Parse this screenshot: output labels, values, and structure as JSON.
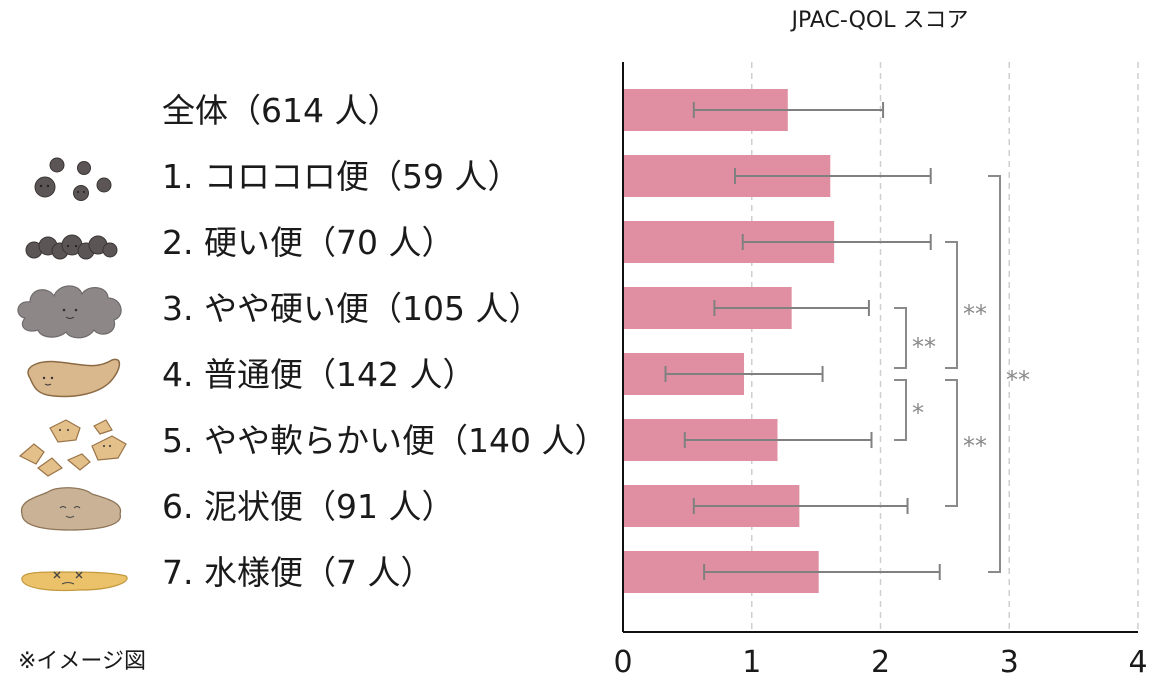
{
  "chart_data": {
    "type": "bar",
    "orientation": "horizontal",
    "title": "JPAC-QOL スコア",
    "categories": [
      "全体（614 人）",
      "1. コロコロ便（59 人）",
      "2. 硬い便（70 人）",
      "3. やや硬い便（105 人）",
      "4. 普通便（142 人）",
      "5. やや軟らかい便（140 人）",
      "6. 泥状便（91 人）",
      "7. 水様便（7 人）"
    ],
    "values": [
      1.28,
      1.61,
      1.64,
      1.31,
      0.94,
      1.2,
      1.37,
      1.52
    ],
    "error_low": [
      0.55,
      0.87,
      0.93,
      0.71,
      0.33,
      0.48,
      0.55,
      0.63
    ],
    "error_high": [
      2.02,
      2.39,
      2.39,
      1.91,
      1.55,
      1.93,
      2.21,
      2.46
    ],
    "xlim": [
      0,
      4
    ],
    "x_ticks": [
      "0",
      "1",
      "2",
      "3",
      "4"
    ],
    "grid": "vertical dashed",
    "significance": [
      {
        "from": 1,
        "to": 7,
        "label": "**"
      },
      {
        "from": 2,
        "to": 4,
        "label": "**"
      },
      {
        "from": 3,
        "to": 4,
        "label": "**"
      },
      {
        "from": 4,
        "to": 5,
        "label": "*"
      },
      {
        "from": 4,
        "to": 6,
        "label": "**"
      }
    ],
    "bar_color": "#e08fa2",
    "error_color": "#808080"
  },
  "note": "※イメージ図",
  "stool_icons": [
    "full-stool-icon-none",
    "hard-lumps-icon",
    "lumpy-sausage-icon",
    "cracked-sausage-icon",
    "smooth-sausage-icon",
    "soft-blobs-icon",
    "mushy-icon",
    "watery-icon"
  ]
}
